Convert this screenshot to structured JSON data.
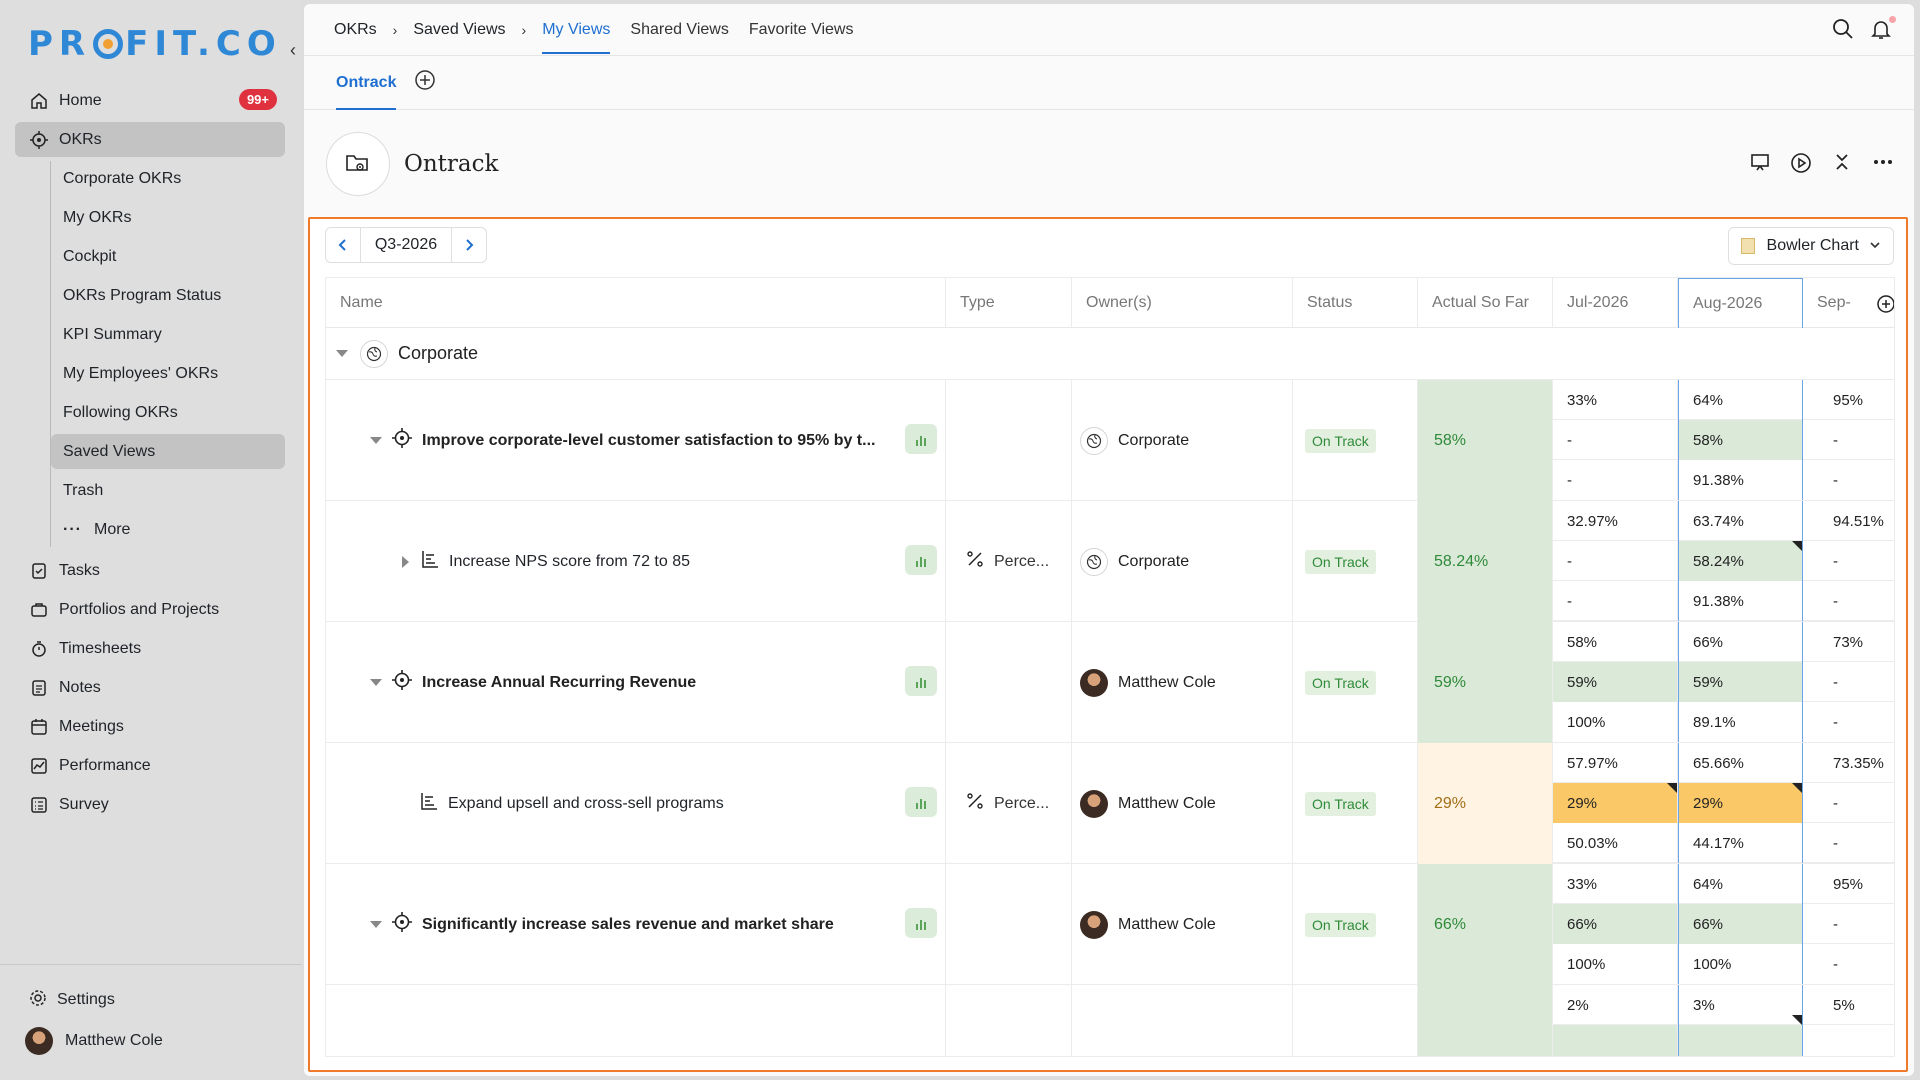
{
  "sidebar": {
    "logo": "PROFIT.CO",
    "nav": {
      "home": "Home",
      "home_badge": "99+",
      "okrs": "OKRs",
      "tasks": "Tasks",
      "portfolios": "Portfolios and Projects",
      "timesheets": "Timesheets",
      "notes": "Notes",
      "meetings": "Meetings",
      "performance": "Performance",
      "survey": "Survey"
    },
    "okr_sub": {
      "corporate": "Corporate OKRs",
      "my": "My OKRs",
      "cockpit": "Cockpit",
      "program_status": "OKRs Program Status",
      "kpi": "KPI Summary",
      "employees": "My Employees' OKRs",
      "following": "Following OKRs",
      "saved_views": "Saved Views",
      "trash": "Trash",
      "more": "More"
    },
    "settings": "Settings",
    "user_name": "Matthew Cole"
  },
  "topnav": {
    "crumb1": "OKRs",
    "crumb2": "Saved Views",
    "tab_my": "My Views",
    "tab_shared": "Shared Views",
    "tab_favorite": "Favorite Views"
  },
  "view_tab": "Ontrack",
  "page_title": "Ontrack",
  "panel": {
    "quarter": "Q3-2026",
    "chart_select": "Bowler Chart",
    "columns": {
      "name": "Name",
      "type": "Type",
      "owners": "Owner(s)",
      "status": "Status",
      "actual": "Actual So Far",
      "jul": "Jul-2026",
      "aug": "Aug-2026",
      "sep": "Sep-"
    },
    "group": "Corporate",
    "rows": [
      {
        "name": "Improve corporate-level customer satisfaction to 95% by t...",
        "type": "",
        "owner": "Corporate",
        "status": "On Track",
        "actual": "58%",
        "jul": [
          "33%",
          "-",
          "-"
        ],
        "aug": [
          "64%",
          "58%",
          "91.38%"
        ],
        "sep": [
          "95%",
          "-",
          "-"
        ]
      },
      {
        "name": "Increase NPS score from 72 to 85",
        "type": "Perce...",
        "owner": "Corporate",
        "status": "On Track",
        "actual": "58.24%",
        "jul": [
          "32.97%",
          "-",
          "-"
        ],
        "aug": [
          "63.74%",
          "58.24%",
          "91.38%"
        ],
        "sep": [
          "94.51%",
          "-",
          "-"
        ]
      },
      {
        "name": "Increase Annual Recurring Revenue",
        "type": "",
        "owner": "Matthew Cole",
        "status": "On Track",
        "actual": "59%",
        "jul": [
          "58%",
          "59%",
          "100%"
        ],
        "aug": [
          "66%",
          "59%",
          "89.1%"
        ],
        "sep": [
          "73%",
          "-",
          "-"
        ]
      },
      {
        "name": "Expand upsell and cross-sell programs",
        "type": "Perce...",
        "owner": "Matthew Cole",
        "status": "On Track",
        "actual": "29%",
        "jul": [
          "57.97%",
          "29%",
          "50.03%"
        ],
        "aug": [
          "65.66%",
          "29%",
          "44.17%"
        ],
        "sep": [
          "73.35%",
          "-",
          "-"
        ]
      },
      {
        "name": "Significantly increase sales revenue and market share",
        "type": "",
        "owner": "Matthew Cole",
        "status": "On Track",
        "actual": "66%",
        "jul": [
          "33%",
          "66%",
          "100%"
        ],
        "aug": [
          "64%",
          "66%",
          "100%"
        ],
        "sep": [
          "95%",
          "-",
          "-"
        ]
      },
      {
        "jul": [
          "2%"
        ],
        "aug": [
          "3%"
        ],
        "sep": [
          "5%"
        ]
      }
    ]
  }
}
